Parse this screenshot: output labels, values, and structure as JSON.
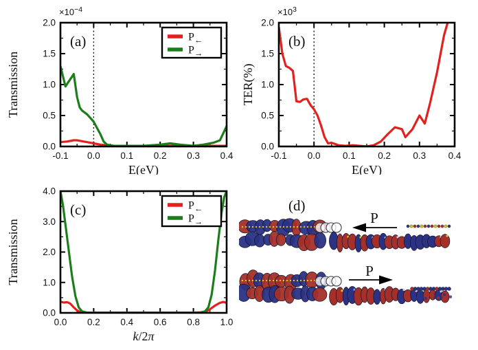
{
  "figure": {
    "background": "#ffffff"
  },
  "colors": {
    "red": "#e4201e",
    "green": "#1b7e1b",
    "axis": "#000000",
    "mol_red": "#a5302a",
    "mol_blue": "#2b3284",
    "mol_yellow": "#d6c51f"
  },
  "chart_data": [
    {
      "id": "a",
      "type": "line",
      "panel_label": "(a)",
      "ylabel": "Transmission",
      "xlabel_parts": [
        {
          "t": "E(eV)",
          "i": false
        }
      ],
      "exponent": {
        "base": "×10",
        "sup": "−4"
      },
      "xlim": [
        -0.1,
        0.4
      ],
      "ylim": [
        0,
        2
      ],
      "xticks": [
        "-0.1",
        "0.0",
        "0.1",
        "0.2",
        "0.3",
        "0.4"
      ],
      "yticks": [
        "0.0",
        "0.5",
        "1.0",
        "1.5",
        "2.0"
      ],
      "vline_x": 0.0,
      "grid": false,
      "legend": {
        "position": "top-right",
        "entries": [
          {
            "main": "P",
            "sub": "←",
            "color": "red"
          },
          {
            "main": "P",
            "sub": "→",
            "color": "green"
          }
        ]
      },
      "series": [
        {
          "name": "P←",
          "color": "red",
          "x": [
            -0.1,
            -0.08,
            -0.06,
            -0.05,
            -0.03,
            -0.01,
            0.0,
            0.02,
            0.04,
            0.06,
            0.1,
            0.2,
            0.3,
            0.4
          ],
          "y": [
            0.07,
            0.08,
            0.1,
            0.1,
            0.08,
            0.06,
            0.05,
            0.03,
            0.02,
            0.01,
            0.01,
            0.01,
            0.01,
            0.01
          ]
        },
        {
          "name": "P→",
          "color": "green",
          "x": [
            -0.1,
            -0.085,
            -0.075,
            -0.06,
            -0.05,
            -0.042,
            -0.035,
            -0.02,
            -0.01,
            0.0,
            0.01,
            0.02,
            0.03,
            0.04,
            0.06,
            0.1,
            0.15,
            0.2,
            0.23,
            0.26,
            0.3,
            0.33,
            0.36,
            0.38,
            0.4
          ],
          "y": [
            1.3,
            0.97,
            1.05,
            1.17,
            0.8,
            0.63,
            0.58,
            0.52,
            0.46,
            0.4,
            0.3,
            0.2,
            0.08,
            0.03,
            0.01,
            0.01,
            0.01,
            0.03,
            0.05,
            0.03,
            0.01,
            0.03,
            0.06,
            0.1,
            0.33
          ]
        }
      ]
    },
    {
      "id": "b",
      "type": "line",
      "panel_label": "(b)",
      "ylabel": "TER(%)",
      "xlabel_parts": [
        {
          "t": "E(eV)",
          "i": false
        }
      ],
      "exponent": {
        "base": "×10",
        "sup": "3"
      },
      "xlim": [
        -0.1,
        0.4
      ],
      "ylim": [
        0,
        2
      ],
      "xticks": [
        "-0.1",
        "0.0",
        "0.1",
        "0.2",
        "0.3",
        "0.4"
      ],
      "yticks": [
        "0.0",
        "0.5",
        "1.0",
        "1.5",
        "2.0"
      ],
      "vline_x": 0.0,
      "grid": false,
      "legend": null,
      "series": [
        {
          "name": "TER",
          "color": "red",
          "x": [
            -0.1,
            -0.09,
            -0.08,
            -0.07,
            -0.06,
            -0.05,
            -0.04,
            -0.03,
            -0.02,
            -0.01,
            0.0,
            0.01,
            0.02,
            0.03,
            0.04,
            0.05,
            0.06,
            0.07,
            0.09,
            0.11,
            0.13,
            0.15,
            0.17,
            0.19,
            0.21,
            0.23,
            0.25,
            0.26,
            0.28,
            0.3,
            0.315,
            0.33,
            0.35,
            0.37,
            0.38
          ],
          "y": [
            1.93,
            1.5,
            1.3,
            1.27,
            1.22,
            0.73,
            0.72,
            0.76,
            0.77,
            0.67,
            0.6,
            0.5,
            0.34,
            0.15,
            0.05,
            0.06,
            0.04,
            0.02,
            0.01,
            0.02,
            0.01,
            0.0,
            0.02,
            0.08,
            0.2,
            0.31,
            0.28,
            0.15,
            0.28,
            0.5,
            0.37,
            0.7,
            1.2,
            1.8,
            2.0
          ]
        }
      ]
    },
    {
      "id": "c",
      "type": "line",
      "panel_label": "(c)",
      "ylabel": "Transmission",
      "xlabel_parts": [
        {
          "t": "k",
          "i": true
        },
        {
          "t": "/2",
          "i": false
        },
        {
          "t": "π",
          "i": true
        }
      ],
      "exponent": null,
      "xlim": [
        0,
        1
      ],
      "ylim": [
        0,
        4
      ],
      "xticks": [
        "0.0",
        "0.2",
        "0.4",
        "0.6",
        "0.8",
        "1.0"
      ],
      "yticks": [
        "0.0",
        "1.0",
        "2.0",
        "3.0",
        "4.0"
      ],
      "vline_x": null,
      "grid": false,
      "legend": {
        "position": "top-right",
        "entries": [
          {
            "main": "P",
            "sub": "←",
            "color": "red"
          },
          {
            "main": "P",
            "sub": "→",
            "color": "green"
          }
        ]
      },
      "series": [
        {
          "name": "P←",
          "color": "red",
          "x": [
            0.0,
            0.02,
            0.04,
            0.05,
            0.06,
            0.08,
            0.1,
            0.12,
            0.14,
            0.2,
            0.5,
            0.8,
            0.86,
            0.89,
            0.91,
            0.93,
            0.95,
            0.96,
            0.98,
            1.0
          ],
          "y": [
            0.37,
            0.34,
            0.35,
            0.33,
            0.3,
            0.18,
            0.08,
            0.03,
            0.01,
            0.01,
            0.01,
            0.01,
            0.02,
            0.08,
            0.16,
            0.24,
            0.3,
            0.33,
            0.36,
            0.33
          ]
        },
        {
          "name": "P→",
          "color": "green",
          "x": [
            0.0,
            0.015,
            0.03,
            0.05,
            0.07,
            0.09,
            0.11,
            0.13,
            0.16,
            0.5,
            0.84,
            0.87,
            0.89,
            0.91,
            0.93,
            0.95,
            0.97,
            0.985,
            1.0
          ],
          "y": [
            4.0,
            3.55,
            2.9,
            2.05,
            1.2,
            0.55,
            0.18,
            0.05,
            0.01,
            0.01,
            0.01,
            0.05,
            0.18,
            0.6,
            1.4,
            2.4,
            3.3,
            3.8,
            4.0
          ]
        }
      ]
    }
  ],
  "panel_d": {
    "label": "(d)",
    "structures": [
      {
        "arrow_label": "P",
        "arrow_dir": "left"
      },
      {
        "arrow_label": "P",
        "arrow_dir": "right"
      }
    ]
  }
}
